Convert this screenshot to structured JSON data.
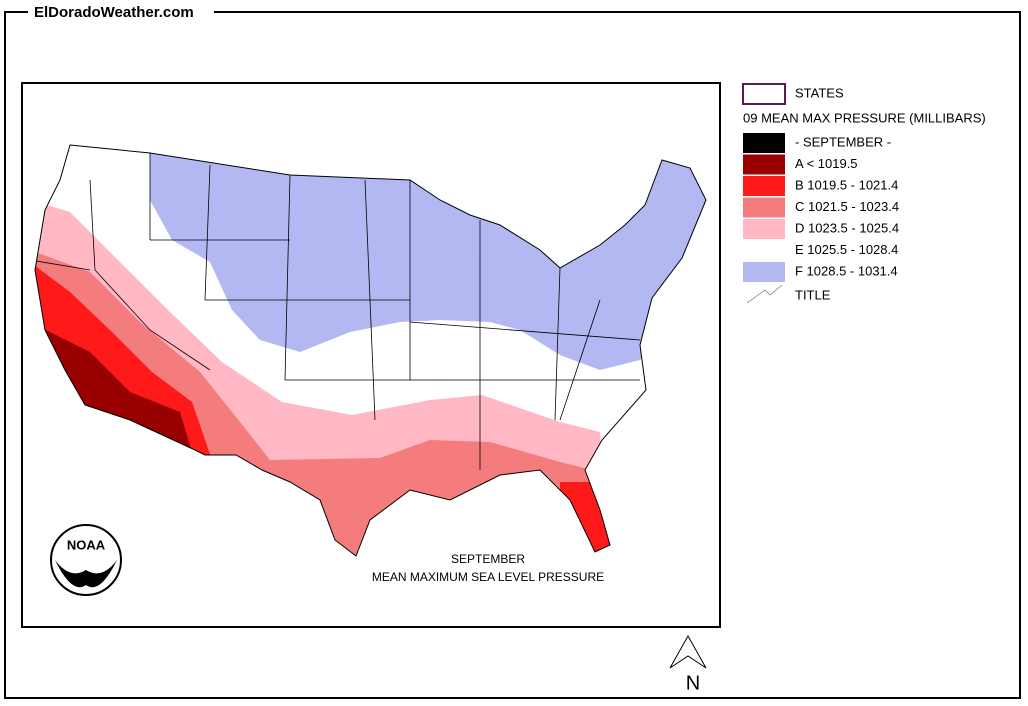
{
  "header": {
    "title": "ElDoradoWeather.com"
  },
  "legend": {
    "states": "STATES",
    "heading": "09 MEAN MAX PRESSURE (MILLIBARS)",
    "month": {
      "label": "- SEPTEMBER -",
      "color": "#000000"
    },
    "classes": [
      {
        "label": "A < 1019.5",
        "color": "#990000"
      },
      {
        "label": "B 1019.5 - 1021.4",
        "color": "#ff1a1a"
      },
      {
        "label": "C 1021.5 - 1023.4",
        "color": "#f47c7c"
      },
      {
        "label": "D 1023.5 - 1025.4",
        "color": "#ffb8c4"
      },
      {
        "label": "E 1025.5 - 1028.4",
        "color": "#ffffff"
      },
      {
        "label": "F 1028.5 - 1031.4",
        "color": "#b3b7f2"
      }
    ],
    "title_layer": "TITLE"
  },
  "map": {
    "caption": [
      "SEPTEMBER",
      "MEAN MAXIMUM SEA LEVEL PRESSURE"
    ],
    "logo": "NOAA",
    "north": "N"
  }
}
